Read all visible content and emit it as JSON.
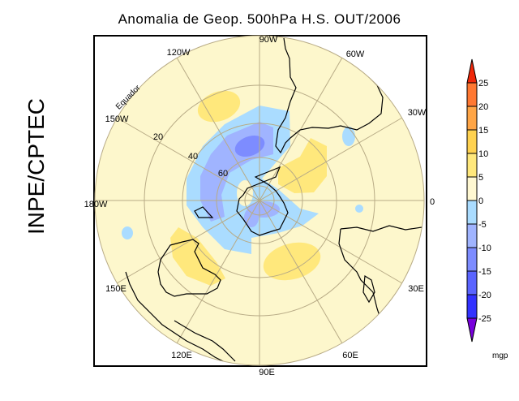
{
  "title": "Anomalia de Geop. 500hPa H.S. OUT/2006",
  "side_label": "INPE/CPTEC",
  "map": {
    "projection": "south polar stereographic",
    "longitude_labels": [
      "90W",
      "120W",
      "60W",
      "150W",
      "30W",
      "180W",
      "0",
      "150E",
      "30E",
      "120E",
      "60E",
      "90E"
    ],
    "latitude_labels": [
      "20",
      "40",
      "60"
    ],
    "equator_label": "Equador"
  },
  "colorbar": {
    "unit": "mgp",
    "labels": [
      "25",
      "20",
      "15",
      "10",
      "5",
      "0",
      "-5",
      "-10",
      "-15",
      "-20",
      "-25"
    ],
    "colors": {
      "above_25": "#f0280a",
      "20_25": "#ff7832",
      "15_20": "#ffa546",
      "10_15": "#ffd250",
      "5_10": "#ffe87c",
      "0_5": "#fff8d2",
      "m5_0": "#aadcff",
      "m10_m5": "#a0b4ff",
      "m15_m10": "#7d8cff",
      "m20_m15": "#5a64ff",
      "m25_m20": "#3232ff",
      "below_m25": "#7800dc"
    }
  }
}
